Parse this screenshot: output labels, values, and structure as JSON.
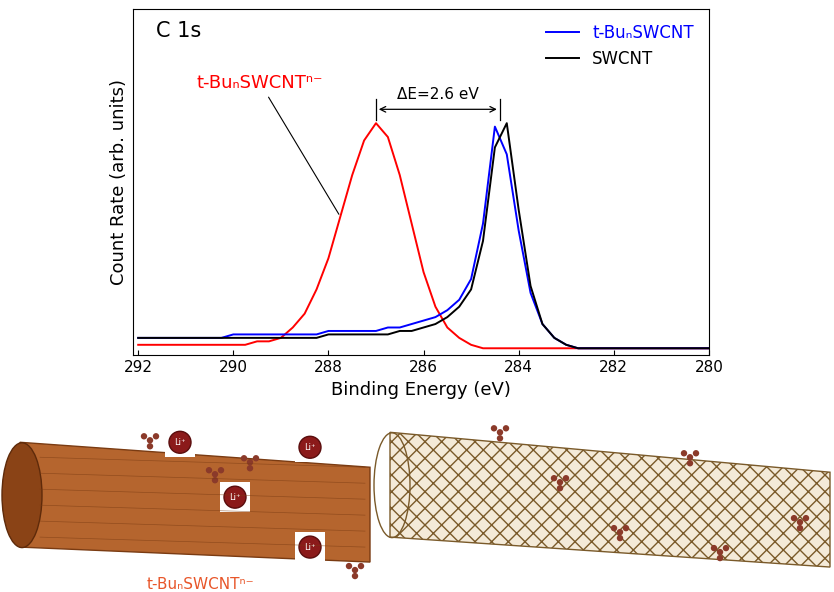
{
  "chart_data": {
    "type": "line",
    "title": "C 1s",
    "x_label": "Binding Energy (eV)",
    "y_label": "Count Rate (arb. units)",
    "x": [
      292,
      291.75,
      291.5,
      291.25,
      291,
      290.75,
      290.5,
      290.25,
      290,
      289.75,
      289.5,
      289.25,
      289,
      288.75,
      288.5,
      288.25,
      288,
      287.75,
      287.5,
      287.25,
      287,
      286.75,
      286.5,
      286.25,
      286,
      285.75,
      285.5,
      285.25,
      285,
      284.75,
      284.5,
      284.25,
      284,
      283.75,
      283.5,
      283.25,
      283,
      282.75,
      282.5,
      282.25,
      282,
      281.75,
      281.5,
      281.25,
      281,
      280.75,
      280.5,
      280.25,
      280
    ],
    "series": [
      {
        "color": "#ff0000",
        "values": [
          0.03,
          0.03,
          0.03,
          0.03,
          0.03,
          0.03,
          0.03,
          0.03,
          0.03,
          0.03,
          0.04,
          0.04,
          0.05,
          0.08,
          0.12,
          0.19,
          0.28,
          0.4,
          0.52,
          0.62,
          0.67,
          0.63,
          0.52,
          0.38,
          0.24,
          0.14,
          0.08,
          0.05,
          0.03,
          0.02,
          0.02,
          0.02,
          0.02,
          0.02,
          0.02,
          0.02,
          0.02,
          0.02,
          0.02,
          0.02,
          0.02,
          0.02,
          0.02,
          0.02,
          0.02,
          0.02,
          0.02,
          0.02,
          0.02
        ]
      },
      {
        "name": "t-BuₙSWCNT",
        "color": "#0000ff",
        "values": [
          0.05,
          0.05,
          0.05,
          0.05,
          0.05,
          0.05,
          0.05,
          0.05,
          0.06,
          0.06,
          0.06,
          0.06,
          0.06,
          0.06,
          0.06,
          0.06,
          0.07,
          0.07,
          0.07,
          0.07,
          0.07,
          0.08,
          0.08,
          0.09,
          0.1,
          0.11,
          0.13,
          0.16,
          0.22,
          0.38,
          0.66,
          0.58,
          0.36,
          0.18,
          0.09,
          0.05,
          0.03,
          0.02,
          0.02,
          0.02,
          0.02,
          0.02,
          0.02,
          0.02,
          0.02,
          0.02,
          0.02,
          0.02,
          0.02
        ]
      },
      {
        "name": "SWCNT",
        "color": "#000000",
        "values": [
          0.05,
          0.05,
          0.05,
          0.05,
          0.05,
          0.05,
          0.05,
          0.05,
          0.05,
          0.05,
          0.05,
          0.05,
          0.05,
          0.05,
          0.05,
          0.05,
          0.06,
          0.06,
          0.06,
          0.06,
          0.06,
          0.06,
          0.07,
          0.07,
          0.08,
          0.09,
          0.11,
          0.14,
          0.19,
          0.33,
          0.6,
          0.67,
          0.42,
          0.2,
          0.09,
          0.05,
          0.03,
          0.02,
          0.02,
          0.02,
          0.02,
          0.02,
          0.02,
          0.02,
          0.02,
          0.02,
          0.02,
          0.02,
          0.02
        ]
      }
    ],
    "xlim": [
      292.1,
      280
    ],
    "xticks": [
      292,
      290,
      288,
      286,
      284,
      282,
      280
    ],
    "ylim": [
      0,
      1
    ],
    "yticks": [],
    "tick_labels": "x",
    "legend": "upper right",
    "annotations": [
      {
        "text": "t-BuₙSWCNTⁿ⁻",
        "x": 287.75,
        "y": 0.4
      }
    ],
    "delta_e": {
      "text": "ΔE=2.6 eV",
      "x_from": 287.0,
      "x_to": 284.4,
      "y": 0.71
    }
  },
  "illustration": {
    "label": "t-BuₙSWCNTⁿ⁻",
    "ion_label": "Li⁺"
  }
}
